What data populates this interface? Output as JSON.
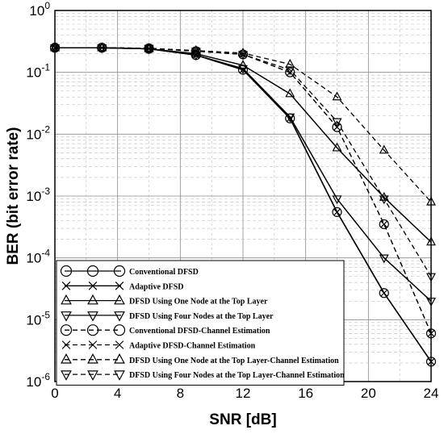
{
  "chart_data": {
    "type": "line",
    "xlabel": "SNR [dB]",
    "ylabel": "BER (bit error rate)",
    "xlim": [
      0,
      24
    ],
    "ylim": [
      1e-06,
      1
    ],
    "yscale": "log",
    "grid": true,
    "legend_position": "bottom-left",
    "x_ticks": [
      "0",
      "4",
      "8",
      "12",
      "16",
      "20",
      "24"
    ],
    "y_tick_base": "10",
    "y_tick_exponents": [
      "0",
      "-1",
      "-2",
      "-3",
      "-4",
      "-5",
      "-6"
    ],
    "series": [
      {
        "name": "Conventional DFSD",
        "marker": "circle",
        "dash": false,
        "x": [
          0,
          3,
          6,
          9,
          12,
          15,
          18,
          21,
          24
        ],
        "y": [
          0.25,
          0.25,
          0.24,
          0.19,
          0.11,
          0.018,
          0.00055,
          2.7e-05,
          2.1e-06
        ]
      },
      {
        "name": "Adaptive DFSD",
        "marker": "x",
        "dash": false,
        "x": [
          0,
          3,
          6,
          9,
          12,
          15,
          18,
          21,
          24
        ],
        "y": [
          0.25,
          0.25,
          0.24,
          0.19,
          0.11,
          0.018,
          0.00055,
          2.7e-05,
          2.1e-06
        ]
      },
      {
        "name": "DFSD Using One Node at the Top Layer",
        "marker": "triangle-up",
        "dash": false,
        "x": [
          0,
          3,
          6,
          9,
          12,
          15,
          18,
          21,
          24
        ],
        "y": [
          0.25,
          0.25,
          0.24,
          0.2,
          0.13,
          0.045,
          0.006,
          0.00095,
          0.00018
        ]
      },
      {
        "name": "DFSD Using Four Nodes at the Top Layer",
        "marker": "triangle-down",
        "dash": false,
        "x": [
          0,
          3,
          6,
          9,
          12,
          15,
          18,
          21,
          24
        ],
        "y": [
          0.25,
          0.25,
          0.24,
          0.19,
          0.115,
          0.019,
          0.0009,
          0.0001,
          2e-05
        ]
      },
      {
        "name": "Conventional DFSD-Channel Estimation",
        "marker": "circle",
        "dash": true,
        "x": [
          0,
          3,
          6,
          9,
          12,
          15,
          18,
          21,
          24
        ],
        "y": [
          0.25,
          0.25,
          0.245,
          0.22,
          0.195,
          0.1,
          0.013,
          0.00035,
          6e-06
        ]
      },
      {
        "name": "Adaptive DFSD-Channel Estimation",
        "marker": "x",
        "dash": true,
        "x": [
          0,
          3,
          6,
          9,
          12,
          15,
          18,
          21,
          24
        ],
        "y": [
          0.25,
          0.25,
          0.245,
          0.22,
          0.195,
          0.1,
          0.013,
          0.00035,
          6e-06
        ]
      },
      {
        "name": "DFSD Using One Node at the Top Layer-Channel Estimation",
        "marker": "triangle-up",
        "dash": true,
        "x": [
          0,
          3,
          6,
          9,
          12,
          15,
          18,
          21,
          24
        ],
        "y": [
          0.25,
          0.25,
          0.245,
          0.225,
          0.205,
          0.135,
          0.04,
          0.0055,
          0.0008
        ]
      },
      {
        "name": "DFSD Using Four Nodes at the Top Layer-Channel Estimation",
        "marker": "triangle-down",
        "dash": true,
        "x": [
          0,
          3,
          6,
          9,
          12,
          15,
          18,
          21,
          24
        ],
        "y": [
          0.25,
          0.25,
          0.245,
          0.22,
          0.195,
          0.11,
          0.016,
          0.0009,
          5e-05
        ]
      }
    ]
  }
}
